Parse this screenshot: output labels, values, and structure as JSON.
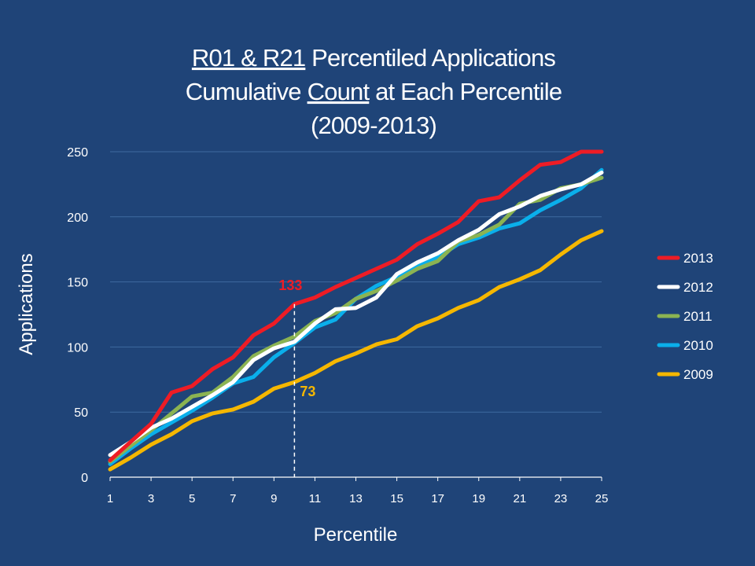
{
  "title_lines": [
    [
      {
        "text": "R01 & R21",
        "underline": true
      },
      {
        "text": " Percentiled Applications",
        "underline": false
      }
    ],
    [
      {
        "text": "Cumulative ",
        "underline": false
      },
      {
        "text": "Count",
        "underline": true
      },
      {
        "text": " at Each Percentile",
        "underline": false
      }
    ],
    [
      {
        "text": "(2009-2013)",
        "underline": false
      }
    ]
  ],
  "chart_data": {
    "type": "line",
    "xlabel": "Percentile",
    "ylabel": "Applications",
    "xlim": [
      1,
      25
    ],
    "ylim": [
      0,
      250
    ],
    "x_ticks": [
      1,
      3,
      5,
      7,
      9,
      11,
      13,
      15,
      17,
      19,
      21,
      23,
      25
    ],
    "y_ticks": [
      0,
      50,
      100,
      150,
      200,
      250
    ],
    "grid": "horizontal",
    "legend_position": "right",
    "x": [
      1,
      2,
      3,
      4,
      5,
      6,
      7,
      8,
      9,
      10,
      11,
      12,
      13,
      14,
      15,
      16,
      17,
      18,
      19,
      20,
      21,
      22,
      23,
      24,
      25
    ],
    "series": [
      {
        "name": "2013",
        "color": "#ee1c25",
        "values": [
          13,
          27,
          41,
          65,
          70,
          83,
          92,
          109,
          118,
          133,
          138,
          146,
          153,
          160,
          167,
          179,
          187,
          196,
          212,
          215,
          228,
          240,
          242,
          250,
          250
        ]
      },
      {
        "name": "2012",
        "color": "#ffffff",
        "values": [
          17,
          27,
          38,
          45,
          54,
          63,
          73,
          90,
          99,
          104,
          118,
          129,
          130,
          138,
          156,
          165,
          172,
          182,
          190,
          202,
          208,
          216,
          221,
          225,
          234
        ]
      },
      {
        "name": "2011",
        "color": "#8bb352",
        "values": [
          12,
          24,
          36,
          49,
          62,
          65,
          77,
          93,
          101,
          108,
          120,
          126,
          137,
          143,
          151,
          160,
          166,
          181,
          186,
          194,
          210,
          213,
          222,
          225,
          230
        ]
      },
      {
        "name": "2010",
        "color": "#0aafeb",
        "values": [
          10,
          22,
          33,
          42,
          51,
          61,
          72,
          77,
          92,
          103,
          115,
          121,
          137,
          147,
          154,
          163,
          169,
          179,
          184,
          191,
          195,
          205,
          213,
          222,
          236
        ]
      },
      {
        "name": "2009",
        "color": "#f5b700",
        "values": [
          6,
          15,
          25,
          33,
          43,
          49,
          52,
          58,
          68,
          73,
          80,
          89,
          95,
          102,
          106,
          116,
          122,
          130,
          136,
          146,
          152,
          159,
          171,
          182,
          189
        ]
      }
    ],
    "reference_line": {
      "x": 10,
      "style": "dashed",
      "color": "#ffffff"
    },
    "annotations": [
      {
        "text": "133",
        "series": "2013",
        "x": 10,
        "y": 133,
        "color": "#ee1c25"
      },
      {
        "text": "73",
        "series": "2009",
        "x": 10,
        "y": 73,
        "color": "#f5b700"
      }
    ]
  }
}
